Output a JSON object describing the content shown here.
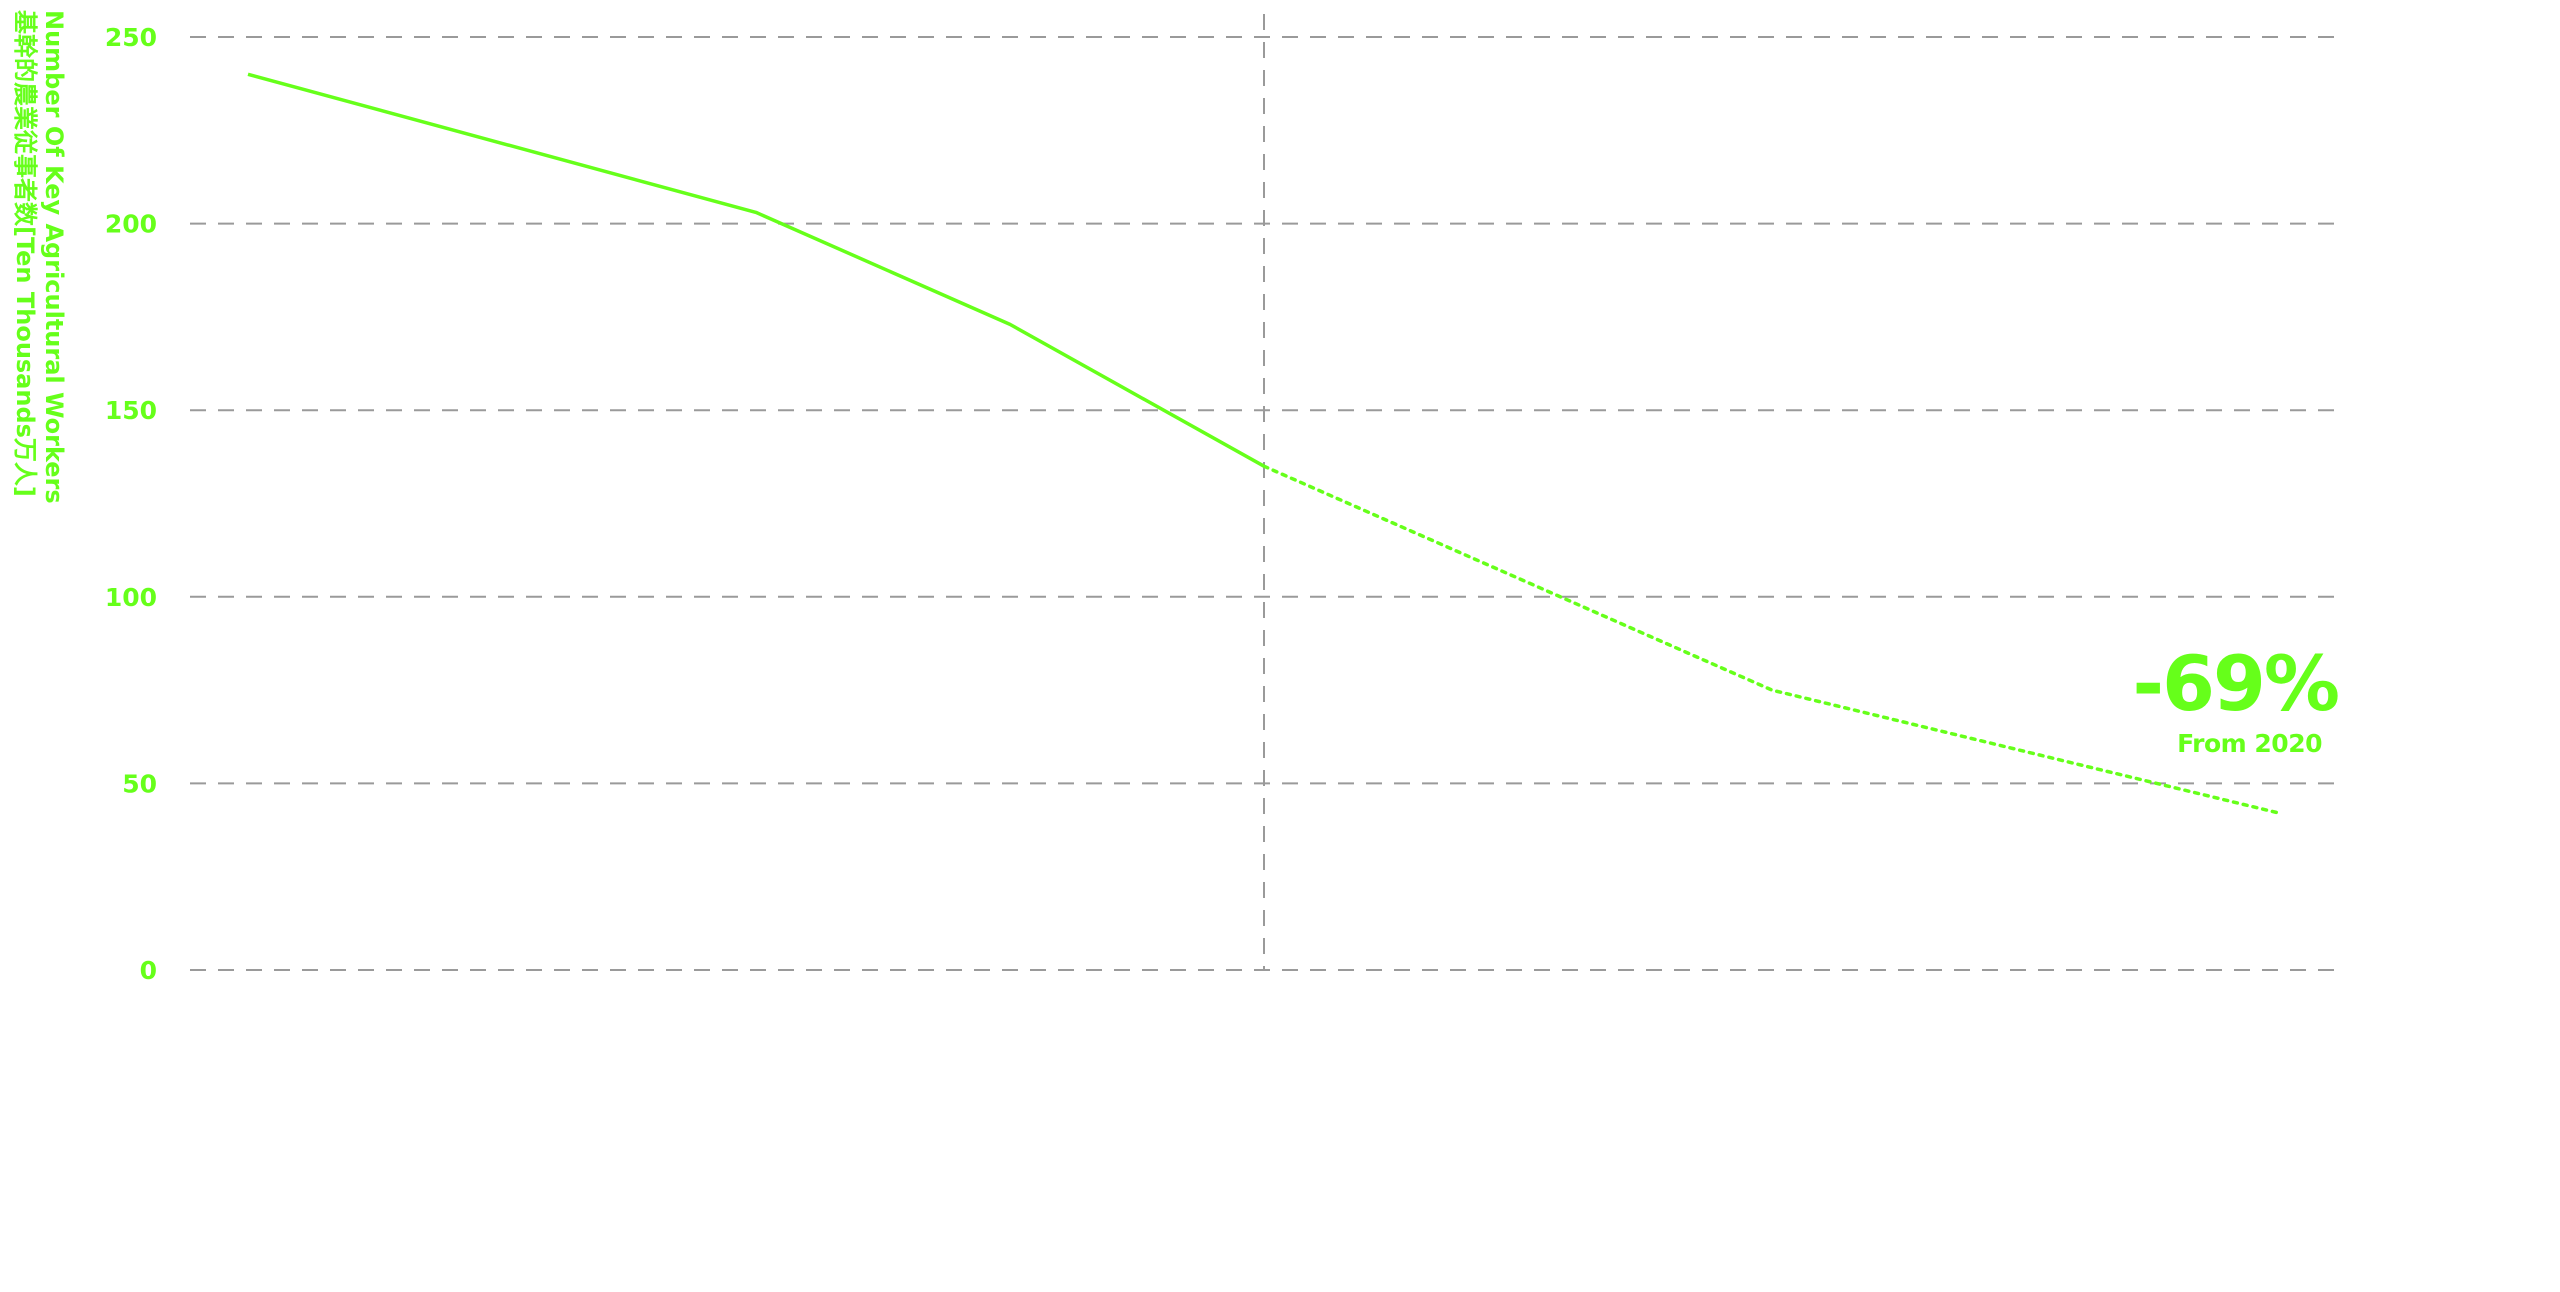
{
  "colors": {
    "accent": "#66ff1a",
    "grid": "#9a9a9a",
    "background": "#ffffff"
  },
  "chart_data": {
    "type": "line",
    "title": "",
    "xlabel": "",
    "ylabel": "Number Of Key Agricultural Workers",
    "ylabel_zh": "基幹的農業従事者数[Ten Thousands万人]",
    "ylim": [
      0,
      250
    ],
    "y_ticks": [
      "250",
      "200",
      "150",
      "100",
      "50",
      "0"
    ],
    "grid": "horizontal dashed",
    "legend": "none",
    "divider_x": 4,
    "series": [
      {
        "style": "solid",
        "x": [
          0,
          2,
          3,
          4
        ],
        "values": [
          240,
          203,
          173,
          135
        ]
      },
      {
        "style": "dotted",
        "x": [
          4,
          6,
          8
        ],
        "values": [
          135,
          75,
          42
        ]
      }
    ],
    "annotation": {
      "big": "-69%",
      "small": "From 2020"
    }
  }
}
